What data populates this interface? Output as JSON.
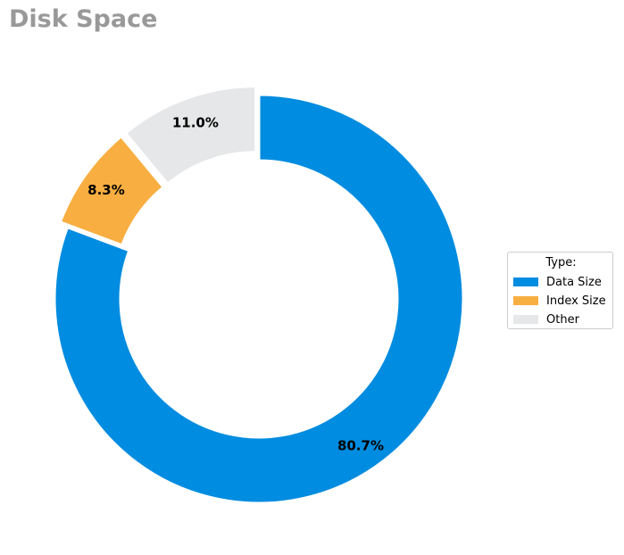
{
  "chart_data": {
    "type": "pie",
    "title": "Disk Space",
    "legend_title": "Type:",
    "legend_position": "right",
    "categories": [
      "Data Size",
      "Index Size",
      "Other"
    ],
    "values": [
      80.7,
      8.3,
      11.0
    ],
    "labels": [
      "80.7%",
      "8.3%",
      "11.0%"
    ],
    "colors": [
      "#008ce0",
      "#f8ae41",
      "#e6e7e8"
    ],
    "style": "donut",
    "exploded": [
      "Index Size",
      "Other"
    ]
  }
}
